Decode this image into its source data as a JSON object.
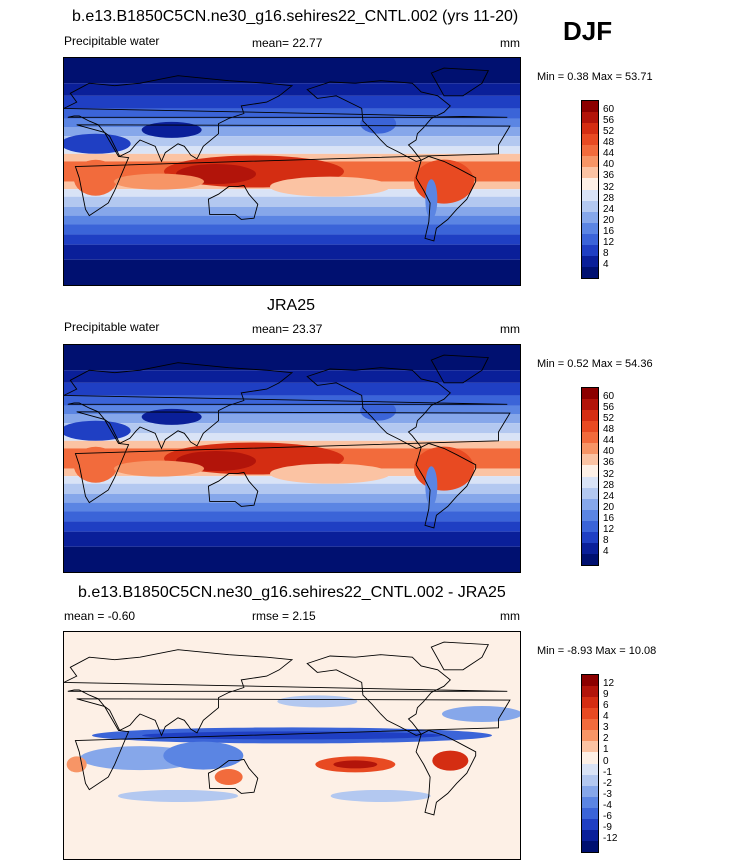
{
  "season": "DJF",
  "panels": [
    {
      "title": "b.e13.B1850C5CN.ne30_g16.sehires22_CNTL.002 (yrs 11-20)",
      "left_label": "Precipitable water",
      "center_label": "mean=  22.77",
      "right_label": "mm",
      "minmax": "Min =   0.38 Max =  53.71",
      "levels": [
        "60",
        "56",
        "52",
        "48",
        "44",
        "40",
        "36",
        "32",
        "28",
        "24",
        "20",
        "16",
        "12",
        "8",
        "4"
      ],
      "colors": [
        "#8b0000",
        "#b2140a",
        "#d42d12",
        "#e84a22",
        "#f26b3c",
        "#f79566",
        "#fbc3a3",
        "#fdf0e6",
        "#d9e3f6",
        "#b3c8f0",
        "#86a7ea",
        "#5b85e3",
        "#3b64d8",
        "#1f3fc3",
        "#0a1f99",
        "#001070"
      ]
    },
    {
      "title": "JRA25",
      "left_label": "Precipitable water",
      "center_label": "mean=  23.37",
      "right_label": "mm",
      "minmax": "Min =   0.52 Max =  54.36",
      "levels": [
        "60",
        "56",
        "52",
        "48",
        "44",
        "40",
        "36",
        "32",
        "28",
        "24",
        "20",
        "16",
        "12",
        "8",
        "4"
      ],
      "colors": [
        "#8b0000",
        "#b2140a",
        "#d42d12",
        "#e84a22",
        "#f26b3c",
        "#f79566",
        "#fbc3a3",
        "#fdf0e6",
        "#d9e3f6",
        "#b3c8f0",
        "#86a7ea",
        "#5b85e3",
        "#3b64d8",
        "#1f3fc3",
        "#0a1f99",
        "#001070"
      ]
    },
    {
      "title": "b.e13.B1850C5CN.ne30_g16.sehires22_CNTL.002 - JRA25",
      "left_label": "mean =  -0.60",
      "center_label": "rmse =   2.15",
      "right_label": "mm",
      "minmax": "Min =  -8.93 Max =  10.08",
      "levels": [
        "12",
        "9",
        "6",
        "4",
        "3",
        "2",
        "1",
        "0",
        "-1",
        "-2",
        "-3",
        "-4",
        "-6",
        "-9",
        "-12"
      ],
      "colors": [
        "#8b0000",
        "#b2140a",
        "#d42d12",
        "#e84a22",
        "#f26b3c",
        "#f79566",
        "#fbc3a3",
        "#fdf0e6",
        "#d9e3f6",
        "#b3c8f0",
        "#86a7ea",
        "#5b85e3",
        "#3b64d8",
        "#1f3fc3",
        "#0a1f99",
        "#001070"
      ]
    }
  ]
}
